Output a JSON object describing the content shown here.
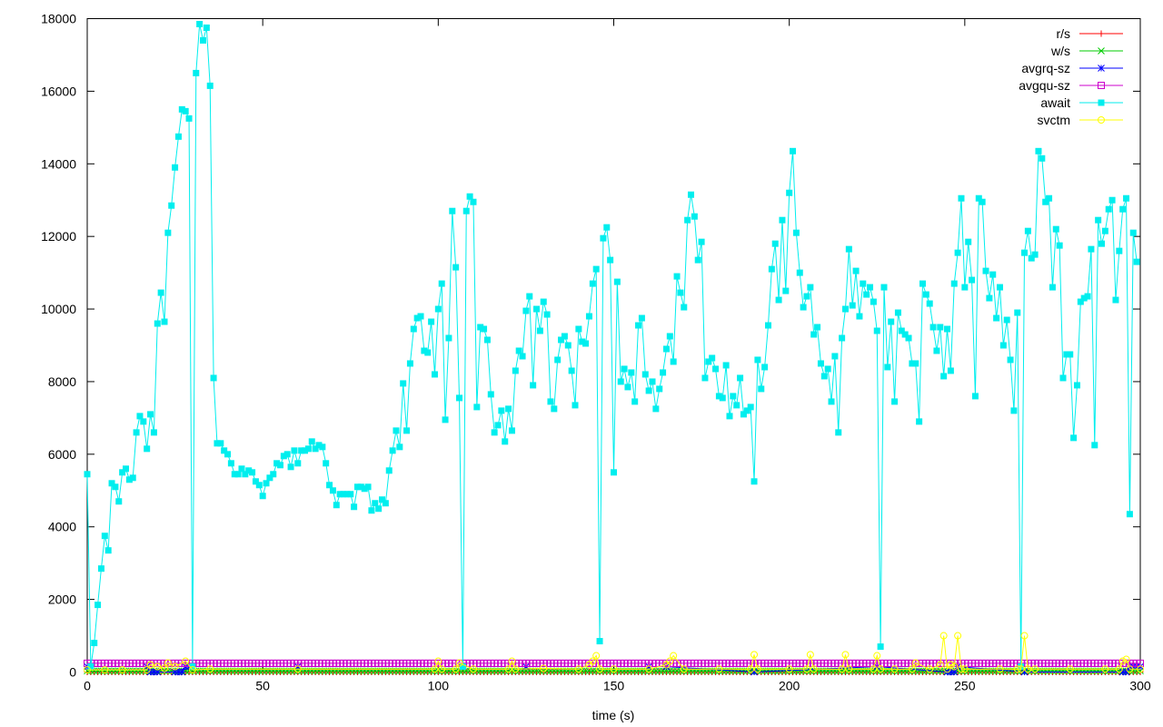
{
  "chart_data": {
    "type": "line",
    "title": "",
    "xlabel": "time (s)",
    "ylabel": "",
    "xlim": [
      0,
      300
    ],
    "ylim": [
      0,
      18000
    ],
    "x_ticks": [
      0,
      50,
      100,
      150,
      200,
      250,
      300
    ],
    "y_ticks": [
      0,
      2000,
      4000,
      6000,
      8000,
      10000,
      12000,
      14000,
      16000,
      18000
    ],
    "grid": false,
    "legend_position": "top-right",
    "series": [
      {
        "name": "r/s",
        "color": "#ff0000",
        "marker": "plus",
        "x": [
          0,
          300
        ],
        "y": [
          0,
          0
        ]
      },
      {
        "name": "w/s",
        "color": "#00cc00",
        "marker": "cross",
        "x": [
          0,
          300
        ],
        "y": [
          30,
          30
        ]
      },
      {
        "name": "avgrq-sz",
        "color": "#0000ff",
        "marker": "star",
        "x": [
          0,
          17,
          18,
          19,
          20,
          25,
          26,
          27,
          28,
          29,
          30,
          60,
          125,
          160,
          165,
          190,
          225,
          245,
          246,
          247,
          248,
          267,
          295,
          296,
          297,
          298,
          299,
          300
        ],
        "y": [
          150,
          150,
          0,
          0,
          0,
          0,
          0,
          0,
          150,
          150,
          150,
          150,
          150,
          150,
          150,
          0,
          150,
          0,
          0,
          0,
          150,
          0,
          0,
          0,
          150,
          150,
          150,
          150
        ]
      },
      {
        "name": "avgqu-sz",
        "color": "#cc00cc",
        "marker": "square-open",
        "x": [
          0,
          300
        ],
        "y": [
          240,
          240
        ]
      },
      {
        "name": "await",
        "color": "#00eeee",
        "marker": "square-filled",
        "x": [
          0,
          1,
          2,
          3,
          4,
          5,
          6,
          7,
          8,
          9,
          10,
          11,
          12,
          13,
          14,
          15,
          16,
          17,
          18,
          19,
          20,
          21,
          22,
          23,
          24,
          25,
          26,
          27,
          28,
          29,
          30,
          31,
          32,
          33,
          34,
          35,
          36,
          37,
          38,
          39,
          40,
          41,
          42,
          43,
          44,
          45,
          46,
          47,
          48,
          49,
          50,
          51,
          52,
          53,
          54,
          55,
          56,
          57,
          58,
          59,
          60,
          61,
          62,
          63,
          64,
          65,
          66,
          67,
          68,
          69,
          70,
          71,
          72,
          73,
          74,
          75,
          76,
          77,
          78,
          79,
          80,
          81,
          82,
          83,
          84,
          85,
          86,
          87,
          88,
          89,
          90,
          91,
          92,
          93,
          94,
          95,
          96,
          97,
          98,
          99,
          100,
          101,
          102,
          103,
          104,
          105,
          106,
          107,
          108,
          109,
          110,
          111,
          112,
          113,
          114,
          115,
          116,
          117,
          118,
          119,
          120,
          121,
          122,
          123,
          124,
          125,
          126,
          127,
          128,
          129,
          130,
          131,
          132,
          133,
          134,
          135,
          136,
          137,
          138,
          139,
          140,
          141,
          142,
          143,
          144,
          145,
          146,
          147,
          148,
          149,
          150,
          151,
          152,
          153,
          154,
          155,
          156,
          157,
          158,
          159,
          160,
          161,
          162,
          163,
          164,
          165,
          166,
          167,
          168,
          169,
          170,
          171,
          172,
          173,
          174,
          175,
          176,
          177,
          178,
          179,
          180,
          181,
          182,
          183,
          184,
          185,
          186,
          187,
          188,
          189,
          190,
          191,
          192,
          193,
          194,
          195,
          196,
          197,
          198,
          199,
          200,
          201,
          202,
          203,
          204,
          205,
          206,
          207,
          208,
          209,
          210,
          211,
          212,
          213,
          214,
          215,
          216,
          217,
          218,
          219,
          220,
          221,
          222,
          223,
          224,
          225,
          226,
          227,
          228,
          229,
          230,
          231,
          232,
          233,
          234,
          235,
          236,
          237,
          238,
          239,
          240,
          241,
          242,
          243,
          244,
          245,
          246,
          247,
          248,
          249,
          250,
          251,
          252,
          253,
          254,
          255,
          256,
          257,
          258,
          259,
          260,
          261,
          262,
          263,
          264,
          265,
          266,
          267,
          268,
          269,
          270,
          271,
          272,
          273,
          274,
          275,
          276,
          277,
          278,
          279,
          280,
          281,
          282,
          283,
          284,
          285,
          286,
          287,
          288,
          289,
          290,
          291,
          292,
          293,
          294,
          295,
          296,
          297,
          298,
          299
        ],
        "y": [
          5450,
          150,
          800,
          1850,
          2850,
          3750,
          3350,
          5200,
          5100,
          4700,
          5500,
          5600,
          5300,
          5350,
          6600,
          7050,
          6900,
          6150,
          7100,
          6600,
          9600,
          10450,
          9650,
          12100,
          12850,
          13900,
          14750,
          15500,
          15450,
          15250,
          150,
          16500,
          17850,
          17400,
          17750,
          16150,
          8100,
          6300,
          6300,
          6100,
          6000,
          5750,
          5450,
          5450,
          5600,
          5450,
          5550,
          5500,
          5250,
          5150,
          4850,
          5200,
          5350,
          5450,
          5750,
          5700,
          5950,
          6000,
          5650,
          6100,
          5750,
          6100,
          6100,
          6150,
          6350,
          6150,
          6250,
          6200,
          5750,
          5150,
          5000,
          4600,
          4900,
          4900,
          4900,
          4900,
          4550,
          5100,
          5100,
          5050,
          5100,
          4450,
          4650,
          4500,
          4750,
          4650,
          5550,
          6100,
          6650,
          6200,
          7950,
          6650,
          8500,
          9450,
          9750,
          9800,
          8850,
          8800,
          9650,
          8200,
          10000,
          10700,
          6950,
          9200,
          12700,
          11150,
          7550,
          150,
          12700,
          13100,
          12950,
          7300,
          9500,
          9450,
          9150,
          7650,
          6600,
          6800,
          7200,
          6350,
          7250,
          6650,
          8300,
          8850,
          8700,
          9950,
          10350,
          7900,
          10000,
          9400,
          10200,
          9850,
          7450,
          7250,
          8600,
          9150,
          9250,
          9000,
          8300,
          7350,
          9450,
          9100,
          9050,
          9800,
          10700,
          11100,
          850,
          11950,
          12250,
          11350,
          5500,
          10750,
          8000,
          8350,
          7850,
          8250,
          7450,
          9550,
          9750,
          8200,
          7750,
          8000,
          7250,
          7800,
          8250,
          8900,
          9250,
          8550,
          10900,
          10450,
          10050,
          12450,
          13150,
          12550,
          11350,
          11850,
          8100,
          8550,
          8650,
          8350,
          7600,
          7550,
          8450,
          7050,
          7600,
          7350,
          8100,
          7100,
          7200,
          7300,
          5250,
          8600,
          7800,
          8400,
          9550,
          11100,
          11800,
          10250,
          12450,
          10500,
          13200,
          14350,
          12100,
          11000,
          10050,
          10350,
          10600,
          9300,
          9500,
          8500,
          8150,
          8350,
          7450,
          8700,
          6600,
          9200,
          10000,
          11650,
          10100,
          11050,
          9800,
          10700,
          10400,
          10600,
          10200,
          9400,
          700,
          10600,
          8400,
          9650,
          7450,
          9900,
          9400,
          9300,
          9200,
          8500,
          8500,
          6900,
          10700,
          10400,
          10150,
          9500,
          8850,
          9500,
          8150,
          9450,
          8300,
          10700,
          11550,
          13050,
          10600,
          11850,
          10800,
          7600,
          13050,
          12950,
          11050,
          10300,
          10950,
          9750,
          10600,
          9000,
          9700,
          8600,
          7200,
          9900,
          150,
          11550,
          12150,
          11400,
          11500,
          14350,
          14150,
          12950,
          13050,
          10600,
          12200,
          11750,
          8100,
          8750,
          8750,
          6450,
          7900,
          10200,
          10300,
          10350,
          11650,
          6250,
          12450,
          11800,
          12150,
          12750,
          13000,
          10250,
          11600,
          12750,
          13050,
          4350,
          12100,
          11300
        ]
      },
      {
        "name": "svctm",
        "color": "#ffff00",
        "marker": "circle-open",
        "x": [
          0,
          5,
          10,
          17,
          18,
          20,
          22,
          23,
          25,
          28,
          30,
          35,
          60,
          99,
          100,
          101,
          105,
          106,
          110,
          120,
          121,
          122,
          130,
          140,
          143,
          144,
          145,
          146,
          150,
          160,
          165,
          166,
          167,
          170,
          180,
          189,
          190,
          191,
          200,
          205,
          206,
          207,
          215,
          216,
          217,
          224,
          225,
          226,
          230,
          235,
          236,
          240,
          243,
          244,
          245,
          246,
          247,
          248,
          249,
          250,
          260,
          265,
          266,
          267,
          268,
          270,
          280,
          290,
          294,
          295,
          296,
          297,
          300
        ],
        "y": [
          60,
          60,
          60,
          60,
          200,
          150,
          100,
          250,
          150,
          300,
          60,
          80,
          80,
          80,
          300,
          80,
          80,
          250,
          80,
          80,
          300,
          80,
          100,
          80,
          200,
          300,
          450,
          80,
          80,
          80,
          200,
          300,
          450,
          80,
          80,
          80,
          480,
          80,
          80,
          80,
          480,
          80,
          80,
          480,
          80,
          80,
          450,
          80,
          80,
          80,
          250,
          80,
          200,
          1000,
          80,
          200,
          150,
          1000,
          80,
          80,
          80,
          80,
          80,
          1000,
          80,
          80,
          80,
          80,
          80,
          300,
          350,
          80,
          80
        ]
      }
    ]
  }
}
